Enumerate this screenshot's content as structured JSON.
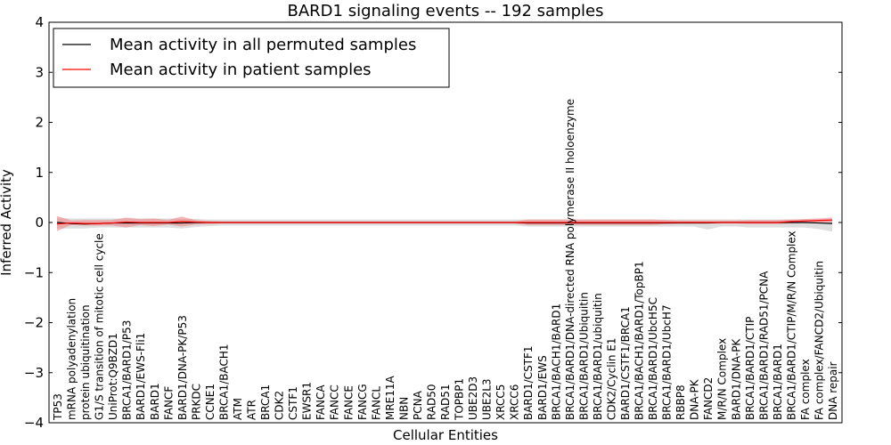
{
  "chart_data": {
    "type": "line",
    "title": "BARD1 signaling events -- 192 samples",
    "xlabel": "Cellular Entities",
    "ylabel": "Inferred Activity",
    "ylim": [
      -4,
      4
    ],
    "yticks": [
      -4,
      -3,
      -2,
      -1,
      0,
      1,
      2,
      3,
      4
    ],
    "ytick_labels": [
      "−4",
      "−3",
      "−2",
      "−1",
      "0",
      "1",
      "2",
      "3",
      "4"
    ],
    "grid": false,
    "legend_position": "top-left",
    "categories": [
      "TP53",
      "mRNA polyadenylation",
      "protein ubiquitination",
      "G1/S transition of mitotic cell cycle",
      "UniProt:Q9BZD1",
      "BRCA1/BARD1/P53",
      "BARD1/EWS-Fli1",
      "BARD1",
      "FANCF",
      "BARD1/DNA-PK/P53",
      "PRKDC",
      "CCNE1",
      "BRCA1/BACH1",
      "ATM",
      "ATR",
      "BRCA1",
      "CDK2",
      "CSTF1",
      "EWSR1",
      "FANCA",
      "FANCC",
      "FANCE",
      "FANCG",
      "FANCL",
      "MRE11A",
      "NBN",
      "PCNA",
      "RAD50",
      "RAD51",
      "TOPBP1",
      "UBE2D3",
      "UBE2L3",
      "XRCC5",
      "XRCC6",
      "BARD1/CSTF1",
      "BARD1/EWS",
      "BRCA1/BACH1/BARD1",
      "BRCA1/BARD1/DNA-directed RNA polymerase II holoenzyme",
      "BRCA1/BARD1/Ubiquitin",
      "BRCA1/BARD1/ubiquitin",
      "CDK2/Cyclin E1",
      "BARD1/CSTF1/BRCA1",
      "BRCA1/BACH1/BARD1/TopBP1",
      "BRCA1/BARD1/UbcH5C",
      "BRCA1/BARD1/UbcH7",
      "RBBP8",
      "DNA-PK",
      "FANCD2",
      "M/R/N Complex",
      "BARD1/DNA-PK",
      "BRCA1/BARD1/CTIP",
      "BRCA1/BARD1/RAD51/PCNA",
      "BRCA1/BARD1",
      "BRCA1/BARD1/CTIP/M/R/N Complex",
      "FA complex",
      "FA complex/FANCD2/Ubiquitin",
      "DNA repair"
    ],
    "series": [
      {
        "name": "Mean activity in all permuted samples",
        "color": "#000000",
        "band_color": "#c8c8c8",
        "values": [
          0.0,
          -0.02,
          -0.03,
          -0.02,
          -0.01,
          -0.01,
          -0.01,
          -0.01,
          -0.01,
          -0.01,
          0,
          0,
          0,
          0,
          0,
          0,
          0,
          0,
          0,
          0,
          0,
          0,
          0,
          0,
          0,
          0,
          0,
          0,
          0,
          0,
          0,
          0,
          0,
          0,
          -0.01,
          -0.01,
          -0.01,
          -0.01,
          -0.01,
          -0.01,
          -0.01,
          -0.01,
          -0.01,
          -0.01,
          -0.01,
          -0.01,
          -0.01,
          -0.01,
          0,
          0,
          0,
          0,
          0,
          0,
          0,
          -0.01,
          -0.02
        ],
        "band_low": [
          -0.12,
          -0.12,
          -0.12,
          -0.1,
          -0.1,
          -0.1,
          -0.1,
          -0.1,
          -0.1,
          -0.12,
          -0.09,
          -0.07,
          -0.06,
          -0.06,
          -0.06,
          -0.06,
          -0.06,
          -0.06,
          -0.06,
          -0.06,
          -0.06,
          -0.06,
          -0.06,
          -0.06,
          -0.06,
          -0.06,
          -0.06,
          -0.06,
          -0.06,
          -0.06,
          -0.06,
          -0.06,
          -0.06,
          -0.06,
          -0.08,
          -0.08,
          -0.08,
          -0.08,
          -0.08,
          -0.08,
          -0.08,
          -0.08,
          -0.08,
          -0.08,
          -0.08,
          -0.08,
          -0.08,
          -0.14,
          -0.08,
          -0.08,
          -0.1,
          -0.1,
          -0.1,
          -0.1,
          -0.1,
          -0.13,
          -0.18
        ],
        "band_high": [
          0.1,
          0.08,
          0.08,
          0.08,
          0.08,
          0.08,
          0.08,
          0.08,
          0.08,
          0.08,
          0.07,
          0.06,
          0.06,
          0.06,
          0.06,
          0.06,
          0.06,
          0.06,
          0.06,
          0.06,
          0.06,
          0.06,
          0.06,
          0.06,
          0.06,
          0.06,
          0.06,
          0.06,
          0.06,
          0.06,
          0.06,
          0.06,
          0.06,
          0.06,
          0.06,
          0.06,
          0.06,
          0.06,
          0.06,
          0.06,
          0.06,
          0.06,
          0.06,
          0.06,
          0.06,
          0.06,
          0.06,
          0.06,
          0.06,
          0.06,
          0.06,
          0.06,
          0.06,
          0.06,
          0.06,
          0.06,
          0.06
        ]
      },
      {
        "name": "Mean activity in patient samples",
        "color": "#ff0000",
        "band_color": "#f08080",
        "values": [
          -0.03,
          -0.01,
          -0.02,
          -0.02,
          -0.01,
          0.01,
          0.0,
          0.0,
          0.0,
          0.02,
          0.01,
          0.0,
          0.0,
          0.0,
          0.0,
          0.0,
          0.0,
          0.0,
          0.0,
          0.0,
          0.0,
          0.0,
          0.0,
          0.0,
          0.0,
          0.0,
          0.0,
          0.0,
          0.0,
          0.0,
          0.0,
          0.0,
          0.0,
          0.0,
          0.0,
          0.0,
          0.0,
          0.0,
          0.0,
          0.0,
          0.0,
          0.0,
          0.0,
          0.0,
          0.0,
          0.0,
          0.0,
          0.0,
          0.0,
          0.0,
          0.0,
          0.0,
          0.0,
          0.02,
          0.03,
          0.04,
          0.05
        ],
        "band_low": [
          -0.17,
          -0.05,
          -0.06,
          -0.06,
          -0.06,
          -0.1,
          -0.05,
          -0.07,
          -0.04,
          -0.08,
          -0.04,
          -0.03,
          -0.02,
          -0.02,
          -0.02,
          -0.02,
          -0.02,
          -0.02,
          -0.02,
          -0.02,
          -0.02,
          -0.02,
          -0.02,
          -0.02,
          -0.02,
          -0.02,
          -0.02,
          -0.02,
          -0.02,
          -0.02,
          -0.02,
          -0.02,
          -0.02,
          -0.02,
          -0.05,
          -0.05,
          -0.05,
          -0.05,
          -0.05,
          -0.05,
          -0.05,
          -0.05,
          -0.05,
          -0.05,
          -0.03,
          -0.02,
          -0.02,
          -0.02,
          -0.02,
          -0.02,
          -0.03,
          -0.03,
          -0.03,
          -0.02,
          -0.01,
          0.0,
          0.0
        ],
        "band_high": [
          0.13,
          0.04,
          0.05,
          0.05,
          0.05,
          0.1,
          0.07,
          0.08,
          0.05,
          0.12,
          0.05,
          0.03,
          0.02,
          0.02,
          0.02,
          0.02,
          0.02,
          0.02,
          0.02,
          0.02,
          0.02,
          0.02,
          0.02,
          0.02,
          0.02,
          0.02,
          0.02,
          0.02,
          0.02,
          0.02,
          0.02,
          0.02,
          0.02,
          0.02,
          0.06,
          0.06,
          0.06,
          0.06,
          0.06,
          0.06,
          0.06,
          0.06,
          0.06,
          0.06,
          0.05,
          0.04,
          0.04,
          0.04,
          0.04,
          0.04,
          0.05,
          0.05,
          0.05,
          0.06,
          0.07,
          0.08,
          0.1
        ]
      }
    ]
  }
}
